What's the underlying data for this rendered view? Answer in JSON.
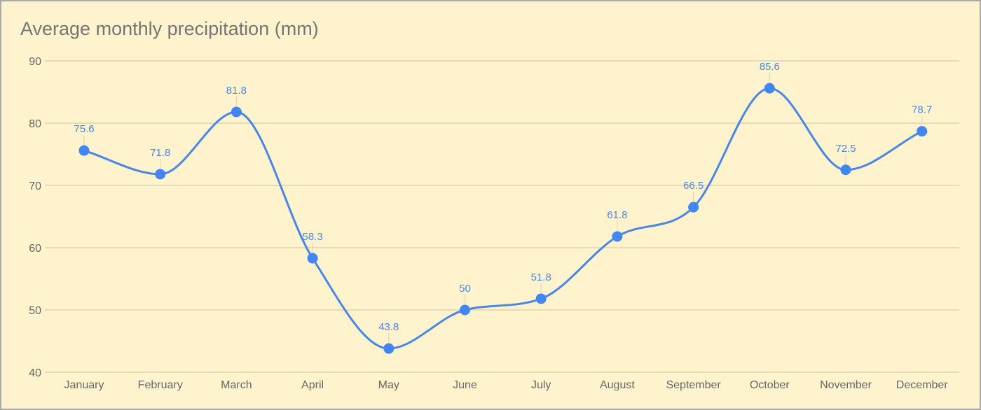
{
  "chart_data": {
    "type": "line",
    "title": "Average monthly precipitation (mm)",
    "categories": [
      "January",
      "February",
      "March",
      "April",
      "May",
      "June",
      "July",
      "August",
      "September",
      "October",
      "November",
      "December"
    ],
    "values": [
      75.6,
      71.8,
      81.8,
      58.3,
      43.8,
      50,
      51.8,
      61.8,
      66.5,
      85.6,
      72.5,
      78.7
    ],
    "data_labels": [
      "75.6",
      "71.8",
      "81.8",
      "58.3",
      "43.8",
      "50",
      "51.8",
      "61.8",
      "66.5",
      "85.6",
      "72.5",
      "78.7"
    ],
    "yticks": [
      40,
      50,
      60,
      70,
      80,
      90
    ],
    "ylim": [
      40,
      90
    ],
    "xlabel": "",
    "ylabel": "",
    "grid": true,
    "smooth": true,
    "legend": "none",
    "colors": {
      "series": "#4285f4",
      "background": "#fff3cd"
    }
  }
}
